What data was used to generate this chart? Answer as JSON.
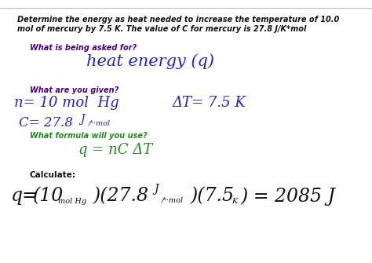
{
  "bg_color": "#ffffff",
  "top_line_text": "Determine the energy as heat needed to increase the temperature of 10.0",
  "top_line_text2": "mol of mercury by 7.5 K. The value of C for mercury is 27.8 J/K*mol",
  "q1_label": "What is being asked for?",
  "q2_label": "What are you given?",
  "formula_label": "What formula will you use?",
  "calc_label": "Calculate:",
  "color_purple": "#4b0082",
  "color_blue": "#2222cc",
  "color_green": "#228b22",
  "color_black": "#111111",
  "color_dark": "#111111",
  "color_line": "#bbbbbb"
}
